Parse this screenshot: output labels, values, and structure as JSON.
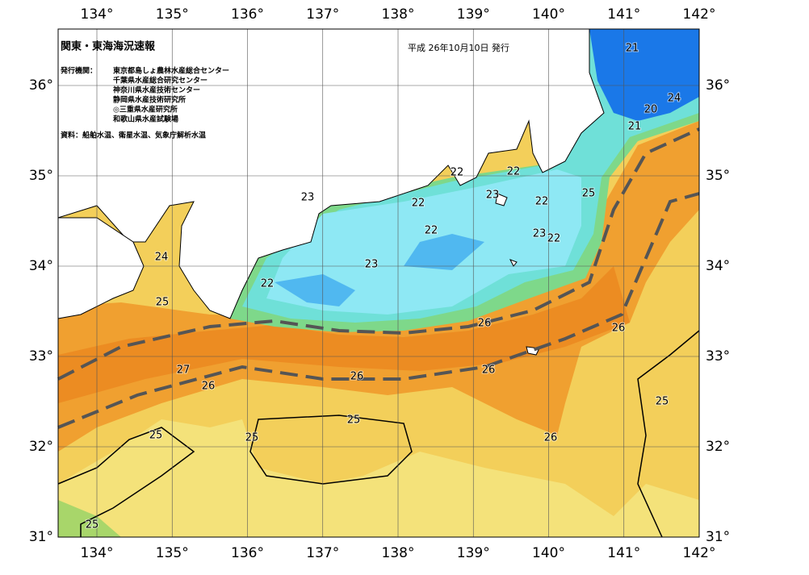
{
  "header": {
    "title": "関東・東海海況速報",
    "date": "平成 26年10月10日 発行"
  },
  "info": {
    "issuer_label": "発行機関：",
    "issuers": [
      "東京都島しょ農林水産総合センター",
      "千葉県水産総合研究センター",
      "神奈川県水産技術センター",
      "静岡県水産技術研究所",
      "◎三重県水産研究所",
      "和歌山県水産試験場"
    ],
    "source": "資料：船舶水温、衛星水温、気象庁解析水温"
  },
  "axes": {
    "lon_ticks": [
      {
        "value": 134,
        "label": "134°"
      },
      {
        "value": 135,
        "label": "135°"
      },
      {
        "value": 136,
        "label": "136°"
      },
      {
        "value": 137,
        "label": "137°"
      },
      {
        "value": 138,
        "label": "138°"
      },
      {
        "value": 139,
        "label": "139°"
      },
      {
        "value": 140,
        "label": "140°"
      },
      {
        "value": 141,
        "label": "141°"
      },
      {
        "value": 142,
        "label": "142°"
      }
    ],
    "lat_ticks": [
      {
        "value": 31,
        "label": "31°"
      },
      {
        "value": 32,
        "label": "32°"
      },
      {
        "value": 33,
        "label": "33°"
      },
      {
        "value": 34,
        "label": "34°"
      },
      {
        "value": 35,
        "label": "35°"
      },
      {
        "value": 36,
        "label": "36°"
      }
    ]
  },
  "contour_labels": [
    "21",
    "24",
    "20",
    "21",
    "25",
    "22",
    "22",
    "23",
    "22",
    "23",
    "22",
    "22",
    "23",
    "22",
    "24",
    "23",
    "22",
    "25",
    "26",
    "26",
    "27",
    "26",
    "26",
    "26",
    "25",
    "25",
    "25",
    "26",
    "25",
    "25"
  ]
}
